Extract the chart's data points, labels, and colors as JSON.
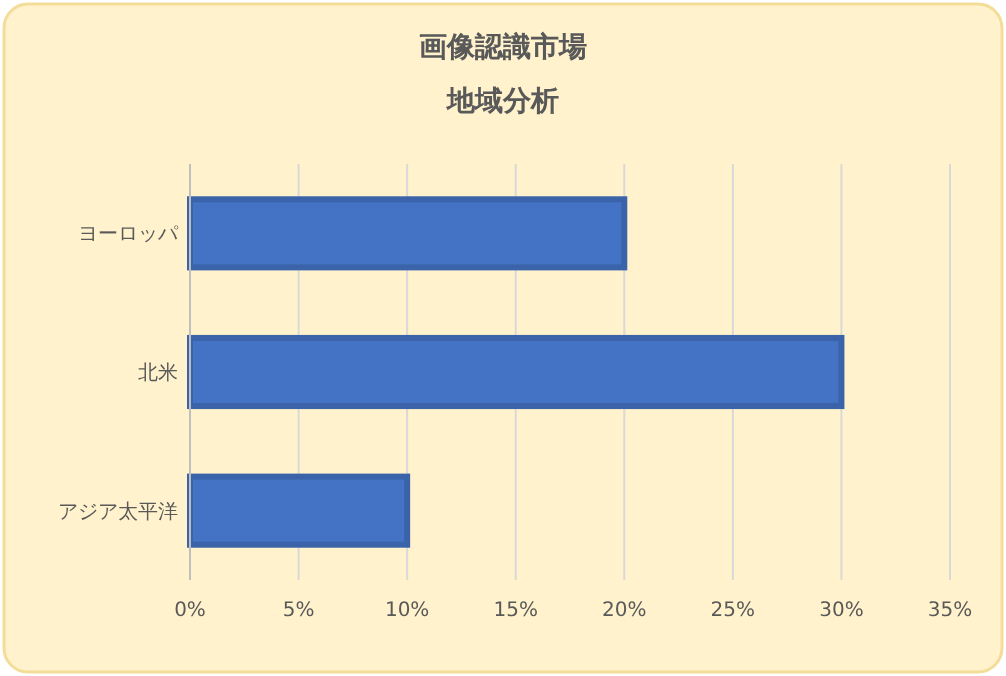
{
  "chart_data": {
    "type": "bar",
    "orientation": "horizontal",
    "title": "画像認識市場",
    "subtitle": "地域分析",
    "categories": [
      "ヨーロッパ",
      "北米",
      "アジア太平洋"
    ],
    "values": [
      20,
      30,
      10
    ],
    "color": "#4472c4",
    "xlim": [
      0,
      35
    ],
    "xticks": [
      {
        "value": 0,
        "label": "0%"
      },
      {
        "value": 5,
        "label": "5%"
      },
      {
        "value": 10,
        "label": "10%"
      },
      {
        "value": 15,
        "label": "15%"
      },
      {
        "value": 20,
        "label": "20%"
      },
      {
        "value": 25,
        "label": "25%"
      },
      {
        "value": 30,
        "label": "30%"
      },
      {
        "value": 35,
        "label": "35%"
      }
    ],
    "grid": "x"
  }
}
